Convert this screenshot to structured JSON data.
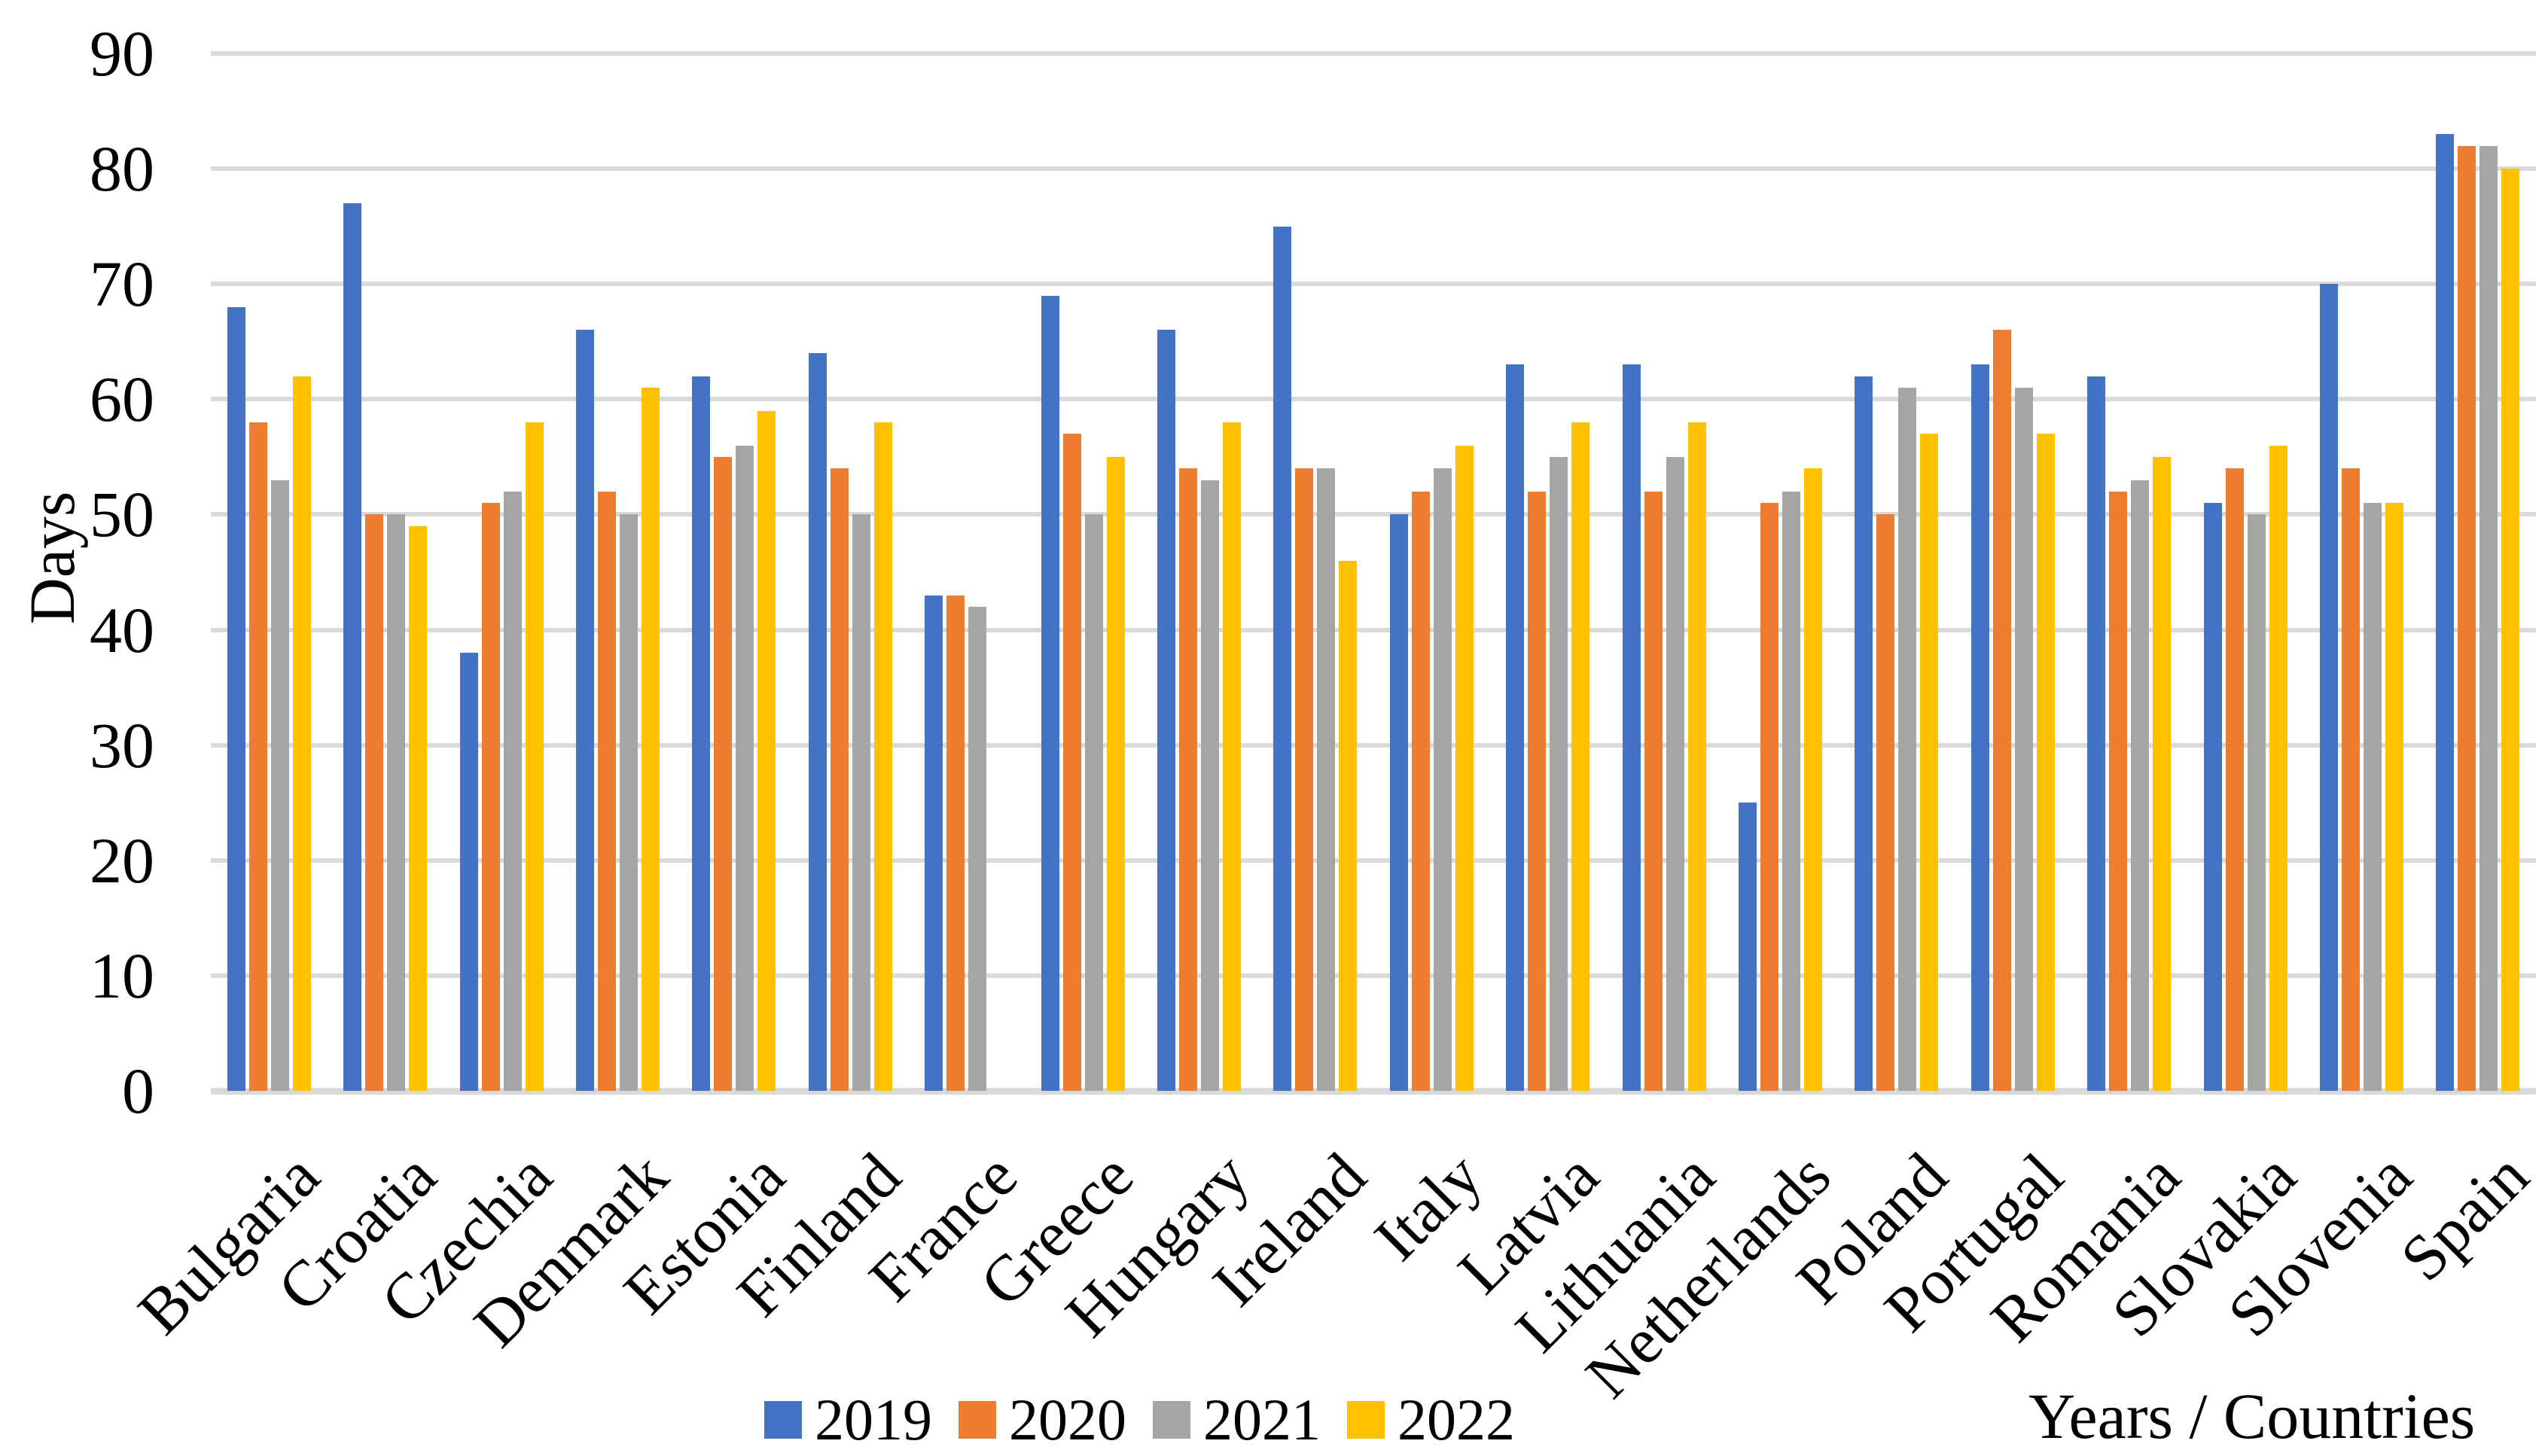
{
  "chart_data": {
    "type": "bar",
    "title": "",
    "ylabel": "Days",
    "xlabel": "Years / Countries",
    "ylim": [
      0,
      90
    ],
    "y_ticks": [
      90,
      80,
      70,
      60,
      50,
      40,
      30,
      20,
      10,
      0
    ],
    "grid": "horizontal-only",
    "legend_position": "bottom-left",
    "categories": [
      "Bulgaria",
      "Croatia",
      "Czechia",
      "Denmark",
      "Estonia",
      "Finland",
      "France",
      "Greece",
      "Hungary",
      "Ireland",
      "Italy",
      "Latvia",
      "Lithuania",
      "Netherlands",
      "Poland",
      "Portugal",
      "Romania",
      "Slovakia",
      "Slovenia",
      "Spain"
    ],
    "series": [
      {
        "name": "2019",
        "color": "#4472C4",
        "values": [
          68,
          77,
          38,
          66,
          62,
          64,
          43,
          69,
          66,
          75,
          50,
          63,
          63,
          25,
          62,
          63,
          62,
          51,
          70,
          83
        ]
      },
      {
        "name": "2020",
        "color": "#ED7D31",
        "values": [
          58,
          50,
          51,
          52,
          55,
          54,
          43,
          57,
          54,
          54,
          52,
          52,
          52,
          51,
          50,
          66,
          52,
          54,
          54,
          82
        ]
      },
      {
        "name": "2021",
        "color": "#A5A5A5",
        "values": [
          53,
          50,
          52,
          50,
          56,
          50,
          42,
          50,
          53,
          54,
          54,
          55,
          55,
          52,
          61,
          61,
          53,
          50,
          51,
          82
        ]
      },
      {
        "name": "2022",
        "color": "#FFC000",
        "values": [
          62,
          49,
          58,
          61,
          59,
          58,
          null,
          55,
          58,
          46,
          56,
          58,
          58,
          54,
          57,
          57,
          55,
          56,
          51,
          80
        ]
      }
    ]
  },
  "style": {
    "gridline_color": "#D9D9D9",
    "axis_line_color": "#D9D9D9",
    "text_color": "#000000",
    "background_color": "#FFFFFF"
  }
}
